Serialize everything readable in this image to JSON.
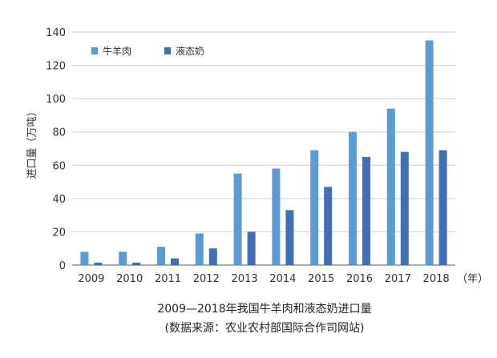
{
  "chart_data": {
    "type": "bar",
    "title": "2009—2018年我国牛羊肉和液态奶进口量",
    "subtitle": "(数据来源：农业农村部国际合作司网站)",
    "ylabel": "进口量（万吨）",
    "xlabel": "（年）",
    "ylim": [
      0,
      140
    ],
    "yticks": [
      0,
      20,
      40,
      60,
      80,
      100,
      120,
      140
    ],
    "categories": [
      "2009",
      "2010",
      "2011",
      "2012",
      "2013",
      "2014",
      "2015",
      "2016",
      "2017",
      "2018"
    ],
    "series": [
      {
        "name": "牛羊肉",
        "color": "#5b9bd5",
        "values": [
          8,
          8,
          11,
          19,
          55,
          58,
          69,
          80,
          94,
          135
        ]
      },
      {
        "name": "液态奶",
        "color": "#3f6fb5",
        "values": [
          1.5,
          1.5,
          4,
          10,
          20,
          33,
          47,
          65,
          68,
          69
        ]
      }
    ],
    "grid": true,
    "legend_position": "top-left"
  }
}
